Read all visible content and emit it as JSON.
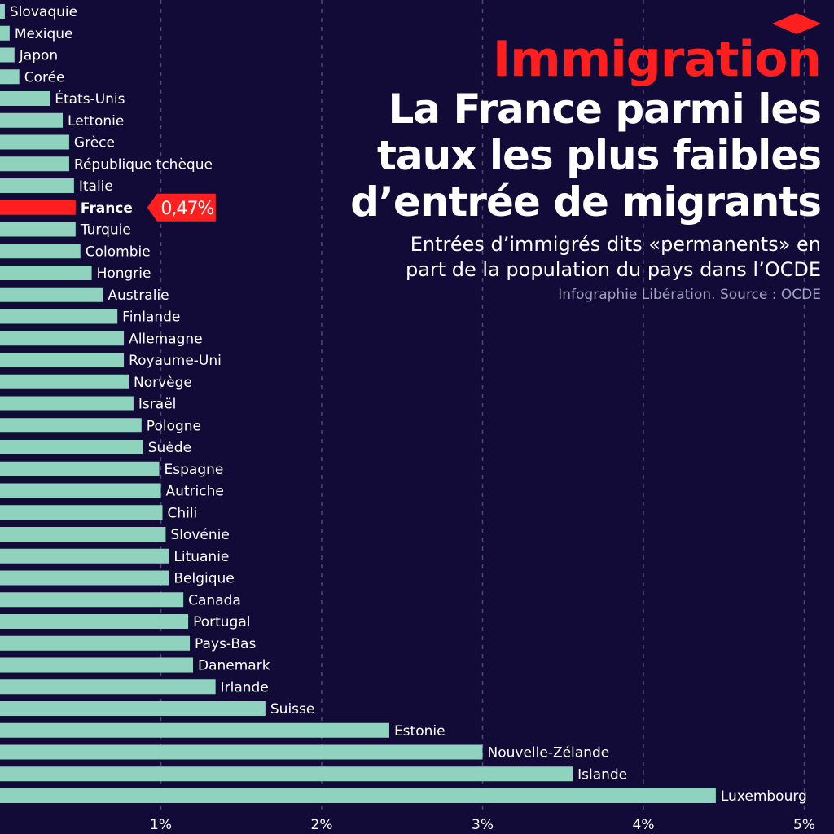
{
  "header": {
    "kicker": "Immigration",
    "title_lines": [
      "La France parmi les",
      "taux les plus faibles",
      "d’entrée de migrants"
    ],
    "subtitle_lines": [
      "Entrées d’immigrés dits «permanents» en",
      "part de la population du pays dans l’OCDE"
    ],
    "source": "Infographie Libération. Source : OCDE"
  },
  "colors": {
    "background": "#120b38",
    "bar": "#8fd3bf",
    "highlight": "#ff1f1f",
    "grid": "#4a4a78",
    "text": "#ffffff",
    "muted": "#a3a1bf"
  },
  "chart_data": {
    "type": "bar",
    "orientation": "horizontal",
    "categories": [
      "Slovaquie",
      "Mexique",
      "Japon",
      "Corée",
      "États-Unis",
      "Lettonie",
      "Grèce",
      "République tchèque",
      "Italie",
      "France",
      "Turquie",
      "Colombie",
      "Hongrie",
      "Australie",
      "Finlande",
      "Allemagne",
      "Royaume-Uni",
      "Norvège",
      "Israël",
      "Pologne",
      "Suède",
      "Espagne",
      "Autriche",
      "Chili",
      "Slovénie",
      "Lituanie",
      "Belgique",
      "Canada",
      "Portugal",
      "Pays-Bas",
      "Danemark",
      "Irlande",
      "Suisse",
      "Estonie",
      "Nouvelle-Zélande",
      "Islande",
      "Luxembourg"
    ],
    "values": [
      0.03,
      0.06,
      0.09,
      0.12,
      0.31,
      0.39,
      0.43,
      0.43,
      0.46,
      0.47,
      0.47,
      0.5,
      0.57,
      0.64,
      0.73,
      0.77,
      0.77,
      0.8,
      0.83,
      0.88,
      0.89,
      0.99,
      1.0,
      1.01,
      1.03,
      1.05,
      1.05,
      1.14,
      1.17,
      1.18,
      1.2,
      1.34,
      1.65,
      2.42,
      3.0,
      3.56,
      4.45
    ],
    "highlight": "France",
    "highlight_label": "0,47%",
    "xticks": [
      1,
      2,
      3,
      4,
      5
    ],
    "xtick_labels": [
      "1%",
      "2%",
      "3%",
      "4%",
      "5%"
    ],
    "xlim": [
      0,
      5
    ],
    "grid": "vertical dashed",
    "legend": "none"
  }
}
